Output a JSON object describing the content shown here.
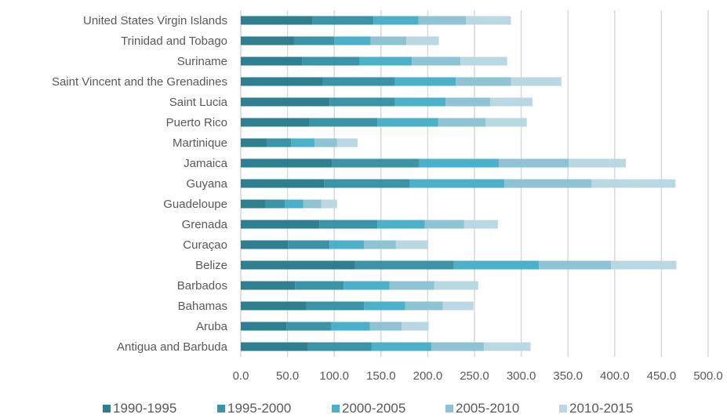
{
  "chart_data": {
    "type": "bar",
    "orientation": "horizontal",
    "stacked": true,
    "title": "",
    "xlabel": "",
    "ylabel": "",
    "xlim": [
      0,
      500
    ],
    "x_ticks": [
      "0.0",
      "50.0",
      "100.0",
      "150.0",
      "200.0",
      "250.0",
      "300.0",
      "350.0",
      "400.0",
      "450.0",
      "500.0"
    ],
    "grid": "vertical",
    "legend_position": "bottom",
    "categories": [
      "United States Virgin Islands",
      "Trinidad and Tobago",
      "Suriname",
      "Saint Vincent and the Grenadines",
      "Saint Lucia",
      "Puerto Rico",
      "Martinique",
      "Jamaica",
      "Guyana",
      "Guadeloupe",
      "Grenada",
      "Curaçao",
      "Belize",
      "Barbados",
      "Bahamas",
      "Aruba",
      "Antigua and Barbuda"
    ],
    "series": [
      {
        "name": "1990-1995",
        "color": "#2e7f8f",
        "values": [
          77,
          57,
          66,
          88,
          95,
          73,
          28,
          98,
          89,
          26,
          84,
          51,
          122,
          58,
          70,
          49,
          72
        ]
      },
      {
        "name": "1995-2000",
        "color": "#3a93a6",
        "values": [
          65,
          43,
          61,
          77,
          70,
          73,
          26,
          93,
          92,
          21,
          62,
          44,
          106,
          52,
          62,
          48,
          68
        ]
      },
      {
        "name": "2000-2005",
        "color": "#4bb1c8",
        "values": [
          48,
          39,
          56,
          65,
          54,
          65,
          25,
          85,
          101,
          20,
          51,
          37,
          91,
          49,
          44,
          41,
          64
        ]
      },
      {
        "name": "2005-2010",
        "color": "#8dc3d3",
        "values": [
          51,
          38,
          52,
          59,
          48,
          51,
          24,
          75,
          93,
          19,
          42,
          34,
          77,
          48,
          40,
          34,
          56
        ]
      },
      {
        "name": "2010-2015",
        "color": "#b9d8e3",
        "values": [
          48,
          35,
          50,
          54,
          45,
          44,
          22,
          61,
          90,
          17,
          36,
          34,
          70,
          47,
          33,
          29,
          50
        ]
      }
    ]
  }
}
